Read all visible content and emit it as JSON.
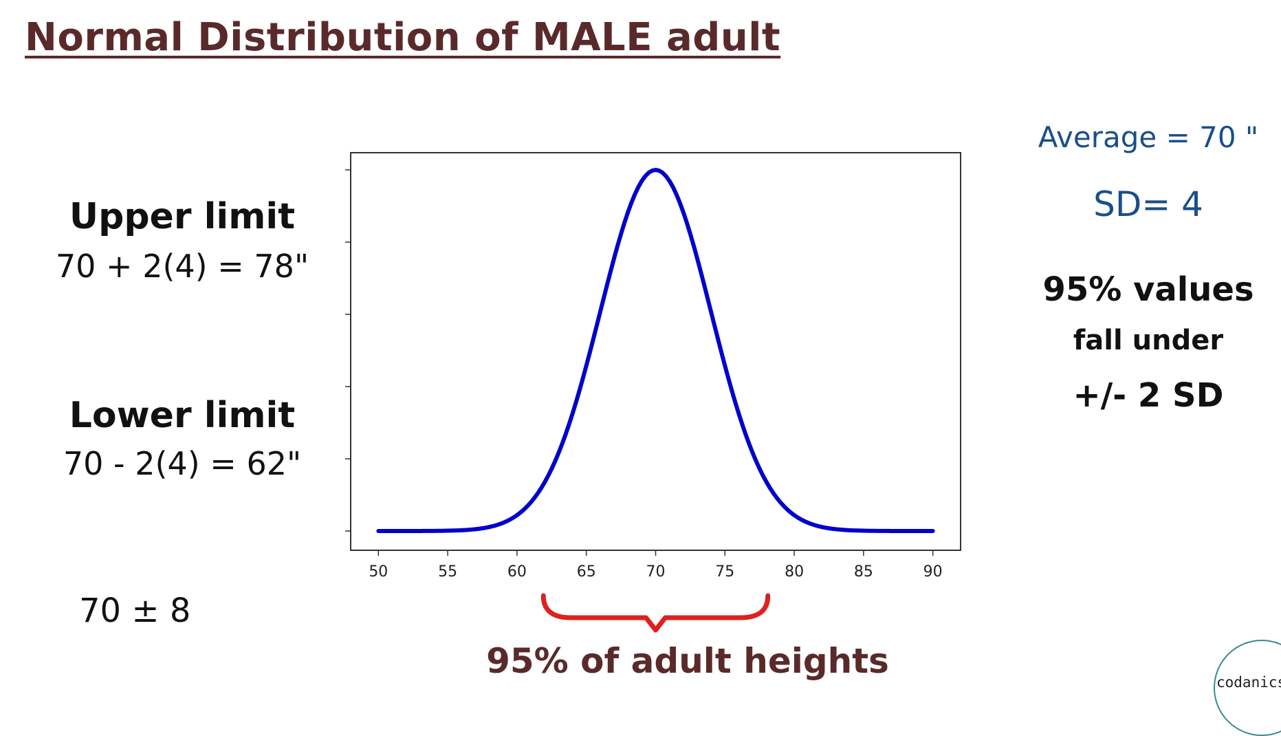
{
  "title": "Normal Distribution of MALE adult",
  "left_panel": {
    "upper_heading": "Upper limit",
    "upper_formula": "70 + 2(4) = 78\"",
    "lower_heading": "Lower limit",
    "lower_formula": "70 - 2(4) = 62\"",
    "plus_minus": "70 ± 8"
  },
  "right_panel": {
    "average": "Average = 70 \"",
    "sd": "SD= 4",
    "line1": "95% values",
    "line2": "fall under",
    "line3": "+/- 2 SD"
  },
  "caption": "95% of adult heights",
  "logo_text": "codanics",
  "colors": {
    "curve": "#0000cc",
    "brace": "#e02020",
    "title": "#5a2a2a",
    "blue_text": "#1a4e8a"
  },
  "chart_data": {
    "type": "line",
    "title": "",
    "xlabel": "",
    "ylabel": "",
    "distribution": "normal",
    "mean": 70,
    "sd": 4,
    "xlim": [
      48,
      92
    ],
    "x_ticks": [
      50,
      55,
      60,
      65,
      70,
      75,
      80,
      85,
      90
    ],
    "x_tick_labels": [
      "50",
      "55",
      "60",
      "65",
      "70",
      "75",
      "80",
      "85",
      "90"
    ],
    "y_tick_count": 6,
    "y_tick_labels_visible": false,
    "series": [
      {
        "x_start": 50,
        "x_end": 90,
        "step": 0.25,
        "color": "#0000cc"
      }
    ],
    "highlight_range": [
      62,
      78
    ],
    "grid": false
  }
}
